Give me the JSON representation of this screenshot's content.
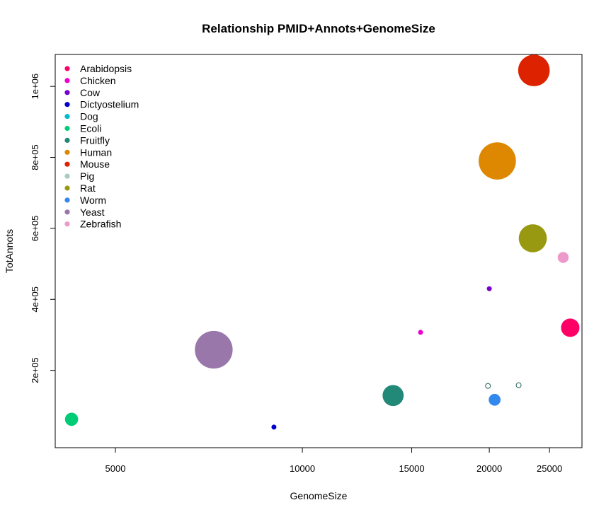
{
  "chart_data": {
    "type": "scatter",
    "title": "Relationship PMID+Annots+GenomeSize",
    "xlabel": "GenomeSize",
    "ylabel": "TotAnnots",
    "xscale": "log",
    "xlim": [
      4000,
      28200
    ],
    "ylim": [
      -18000,
      1090000
    ],
    "x_ticks": [
      {
        "value": 5000,
        "label": "5000"
      },
      {
        "value": 10000,
        "label": "10000"
      },
      {
        "value": 15000,
        "label": "15000"
      },
      {
        "value": 20000,
        "label": "20000"
      },
      {
        "value": 25000,
        "label": "25000"
      }
    ],
    "y_ticks": [
      {
        "value": 200000,
        "label": "2e+05"
      },
      {
        "value": 400000,
        "label": "4e+05"
      },
      {
        "value": 600000,
        "label": "6e+05"
      },
      {
        "value": 800000,
        "label": "8e+05"
      },
      {
        "value": 1000000,
        "label": "1e+06"
      }
    ],
    "legend": {
      "position": "top-left",
      "frame": false
    },
    "grid": false,
    "size_encoding": "PMID",
    "series": [
      {
        "name": "Arabidopsis",
        "color": "#FF0066",
        "x": 27000,
        "y": 320000,
        "size": 0.42
      },
      {
        "name": "Chicken",
        "color": "#EE00CC",
        "x": 15500,
        "y": 307000,
        "size": 0.08
      },
      {
        "name": "Cow",
        "color": "#7700CC",
        "x": 20000,
        "y": 430000,
        "size": 0.08
      },
      {
        "name": "Dictyostelium",
        "color": "#0000CC",
        "x": 9000,
        "y": 40000,
        "size": 0.1
      },
      {
        "name": "Dog",
        "color": "#00BBCC",
        "x": 22300,
        "y": 158000,
        "size": 0.07,
        "hollow": true
      },
      {
        "name": "Ecoli",
        "color": "#00CC77",
        "x": 4250,
        "y": 62000,
        "size": 0.3
      },
      {
        "name": "Fruitfly",
        "color": "#228877",
        "x": 14000,
        "y": 129000,
        "size": 0.48
      },
      {
        "name": "Human",
        "color": "#DD8800",
        "x": 20600,
        "y": 790000,
        "size": 0.85
      },
      {
        "name": "Mouse",
        "color": "#DD2200",
        "x": 23600,
        "y": 1045000,
        "size": 0.72
      },
      {
        "name": "Pig",
        "color": "#AACCBB",
        "x": 19900,
        "y": 156000,
        "size": 0.07,
        "hollow": true
      },
      {
        "name": "Rat",
        "color": "#999911",
        "x": 23500,
        "y": 572000,
        "size": 0.64
      },
      {
        "name": "Worm",
        "color": "#3388EE",
        "x": 20400,
        "y": 117000,
        "size": 0.27
      },
      {
        "name": "Yeast",
        "color": "#9977AA",
        "x": 7200,
        "y": 258000,
        "size": 0.86
      },
      {
        "name": "Zebrafish",
        "color": "#EE99CC",
        "x": 26300,
        "y": 518000,
        "size": 0.25
      }
    ]
  }
}
